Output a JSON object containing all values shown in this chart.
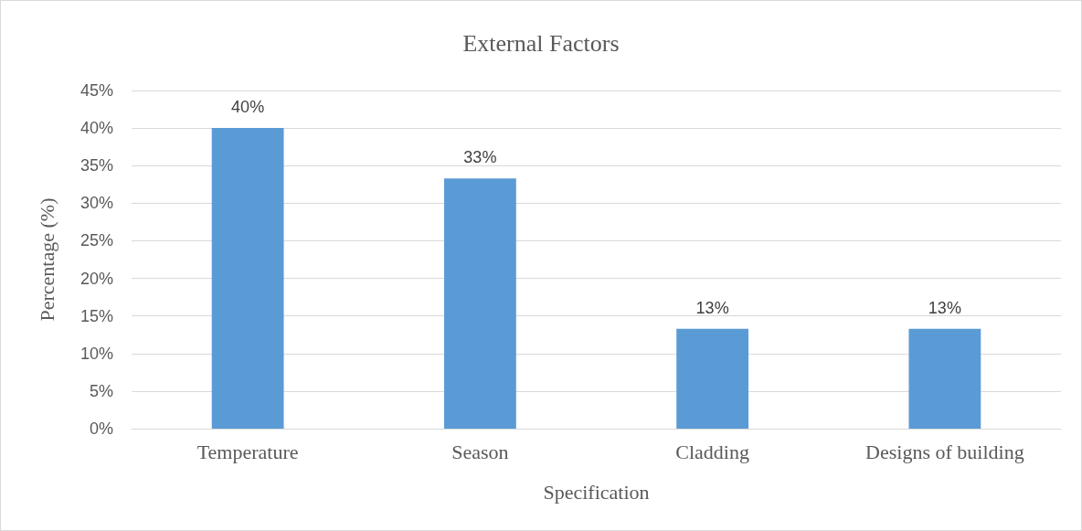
{
  "chart_data": {
    "type": "bar",
    "title": "External Factors",
    "xlabel": "Specification",
    "ylabel": "Percentage (%)",
    "categories": [
      "Temperature",
      "Season",
      "Cladding",
      "Designs of building"
    ],
    "values": [
      40,
      33.3,
      13.3,
      13.3
    ],
    "value_labels": [
      "40%",
      "33%",
      "13%",
      "13%"
    ],
    "color": "#5b9bd5",
    "ylim": [
      0,
      45
    ],
    "yticks": [
      {
        "value": 0,
        "label": "0%"
      },
      {
        "value": 5,
        "label": "5%"
      },
      {
        "value": 10,
        "label": "10%"
      },
      {
        "value": 15,
        "label": "15%"
      },
      {
        "value": 20,
        "label": "20%"
      },
      {
        "value": 25,
        "label": "25%"
      },
      {
        "value": 30,
        "label": "30%"
      },
      {
        "value": 35,
        "label": "35%"
      },
      {
        "value": 40,
        "label": "40%"
      },
      {
        "value": 45,
        "label": "45%"
      }
    ],
    "grid": "y"
  }
}
